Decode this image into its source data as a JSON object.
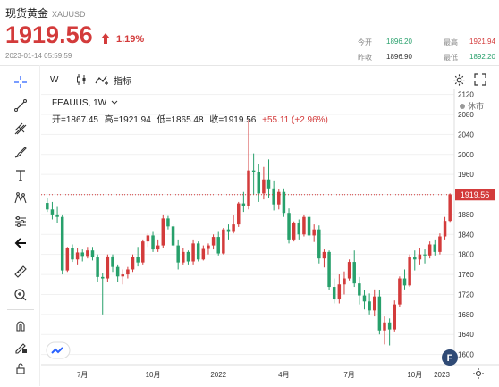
{
  "header": {
    "title": "现货黄金",
    "symbol": "XAUUSD",
    "price": "1919.56",
    "change_pct": "1.19%",
    "timestamp": "2023-01-14 05:59:59",
    "stats": {
      "open_label": "今开",
      "open_value": "1896.20",
      "high_label": "最高",
      "high_value": "1921.94",
      "prev_label": "昨收",
      "prev_value": "1896.90",
      "low_label": "最低",
      "low_value": "1892.20"
    }
  },
  "toolbar": {
    "interval": "W",
    "indicators_label": "指标"
  },
  "legend": {
    "symbol_interval": "FEAUUS, 1W",
    "open": "开=1867.45",
    "high": "高=1921.94",
    "low": "低=1865.48",
    "close": "收=1919.56",
    "change": "+55.11 (+2.96%)",
    "status": "休市"
  },
  "price_label": "1919.56",
  "colors": {
    "up": "#d33b3b",
    "down": "#27a06b",
    "accent": "#2962ff"
  },
  "chart_data": {
    "type": "candlestick",
    "x_ticks": [
      "7月",
      "10月",
      "2022",
      "4月",
      "7月",
      "10月",
      "2023"
    ],
    "y_ticks": [
      1600,
      1640,
      1680,
      1720,
      1760,
      1800,
      1840,
      1880,
      1920,
      1960,
      2000,
      2040,
      2080,
      2120
    ],
    "ylim": [
      1585,
      2130
    ],
    "last_price": 1919.56,
    "candles": [
      [
        1903,
        1912,
        1885,
        1890
      ],
      [
        1890,
        1905,
        1870,
        1880
      ],
      [
        1880,
        1895,
        1862,
        1875
      ],
      [
        1875,
        1880,
        1760,
        1768
      ],
      [
        1768,
        1815,
        1765,
        1812
      ],
      [
        1812,
        1820,
        1785,
        1790
      ],
      [
        1790,
        1812,
        1780,
        1804
      ],
      [
        1804,
        1810,
        1786,
        1797
      ],
      [
        1797,
        1815,
        1792,
        1808
      ],
      [
        1808,
        1815,
        1788,
        1794
      ],
      [
        1794,
        1800,
        1745,
        1755
      ],
      [
        1755,
        1762,
        1680,
        1752
      ],
      [
        1752,
        1800,
        1745,
        1796
      ],
      [
        1796,
        1800,
        1765,
        1775
      ],
      [
        1775,
        1780,
        1745,
        1756
      ],
      [
        1756,
        1770,
        1740,
        1760
      ],
      [
        1760,
        1775,
        1752,
        1770
      ],
      [
        1770,
        1800,
        1765,
        1795
      ],
      [
        1795,
        1815,
        1776,
        1784
      ],
      [
        1784,
        1830,
        1780,
        1826
      ],
      [
        1826,
        1842,
        1815,
        1838
      ],
      [
        1838,
        1845,
        1805,
        1810
      ],
      [
        1810,
        1830,
        1805,
        1818
      ],
      [
        1818,
        1880,
        1812,
        1872
      ],
      [
        1872,
        1877,
        1850,
        1856
      ],
      [
        1856,
        1860,
        1815,
        1818
      ],
      [
        1818,
        1830,
        1770,
        1784
      ],
      [
        1784,
        1812,
        1780,
        1805
      ],
      [
        1805,
        1808,
        1780,
        1786
      ],
      [
        1786,
        1830,
        1780,
        1822
      ],
      [
        1822,
        1826,
        1786,
        1790
      ],
      [
        1790,
        1818,
        1788,
        1811
      ],
      [
        1811,
        1822,
        1800,
        1818
      ],
      [
        1818,
        1840,
        1810,
        1835
      ],
      [
        1835,
        1845,
        1798,
        1802
      ],
      [
        1802,
        1853,
        1800,
        1850
      ],
      [
        1850,
        1860,
        1830,
        1845
      ],
      [
        1845,
        1878,
        1842,
        1860
      ],
      [
        1860,
        1905,
        1855,
        1902
      ],
      [
        1902,
        1925,
        1885,
        1896
      ],
      [
        1896,
        2070,
        1890,
        1968
      ],
      [
        1968,
        2002,
        1920,
        1965
      ],
      [
        1965,
        1980,
        1905,
        1922
      ],
      [
        1922,
        1975,
        1910,
        1950
      ],
      [
        1950,
        1990,
        1912,
        1932
      ],
      [
        1932,
        1948,
        1888,
        1900
      ],
      [
        1900,
        1930,
        1890,
        1925
      ],
      [
        1925,
        1932,
        1875,
        1883
      ],
      [
        1883,
        1892,
        1822,
        1830
      ],
      [
        1830,
        1866,
        1826,
        1862
      ],
      [
        1862,
        1870,
        1830,
        1840
      ],
      [
        1840,
        1880,
        1836,
        1875
      ],
      [
        1875,
        1878,
        1830,
        1838
      ],
      [
        1838,
        1860,
        1825,
        1850
      ],
      [
        1850,
        1858,
        1782,
        1792
      ],
      [
        1792,
        1810,
        1774,
        1805
      ],
      [
        1805,
        1808,
        1728,
        1735
      ],
      [
        1735,
        1752,
        1702,
        1710
      ],
      [
        1710,
        1760,
        1702,
        1740
      ],
      [
        1740,
        1766,
        1720,
        1752
      ],
      [
        1752,
        1790,
        1748,
        1785
      ],
      [
        1785,
        1808,
        1735,
        1742
      ],
      [
        1742,
        1755,
        1700,
        1718
      ],
      [
        1718,
        1728,
        1690,
        1706
      ],
      [
        1706,
        1722,
        1680,
        1688
      ],
      [
        1688,
        1730,
        1676,
        1716
      ],
      [
        1716,
        1728,
        1640,
        1648
      ],
      [
        1648,
        1676,
        1620,
        1664
      ],
      [
        1664,
        1672,
        1618,
        1650
      ],
      [
        1650,
        1708,
        1646,
        1700
      ],
      [
        1700,
        1756,
        1694,
        1752
      ],
      [
        1752,
        1770,
        1730,
        1738
      ],
      [
        1738,
        1800,
        1735,
        1794
      ],
      [
        1794,
        1808,
        1768,
        1790
      ],
      [
        1790,
        1812,
        1780,
        1800
      ],
      [
        1800,
        1810,
        1782,
        1798
      ],
      [
        1798,
        1826,
        1792,
        1820
      ],
      [
        1820,
        1830,
        1798,
        1805
      ],
      [
        1805,
        1842,
        1800,
        1836
      ],
      [
        1836,
        1875,
        1830,
        1867
      ],
      [
        1867,
        1922,
        1865,
        1920
      ]
    ]
  }
}
